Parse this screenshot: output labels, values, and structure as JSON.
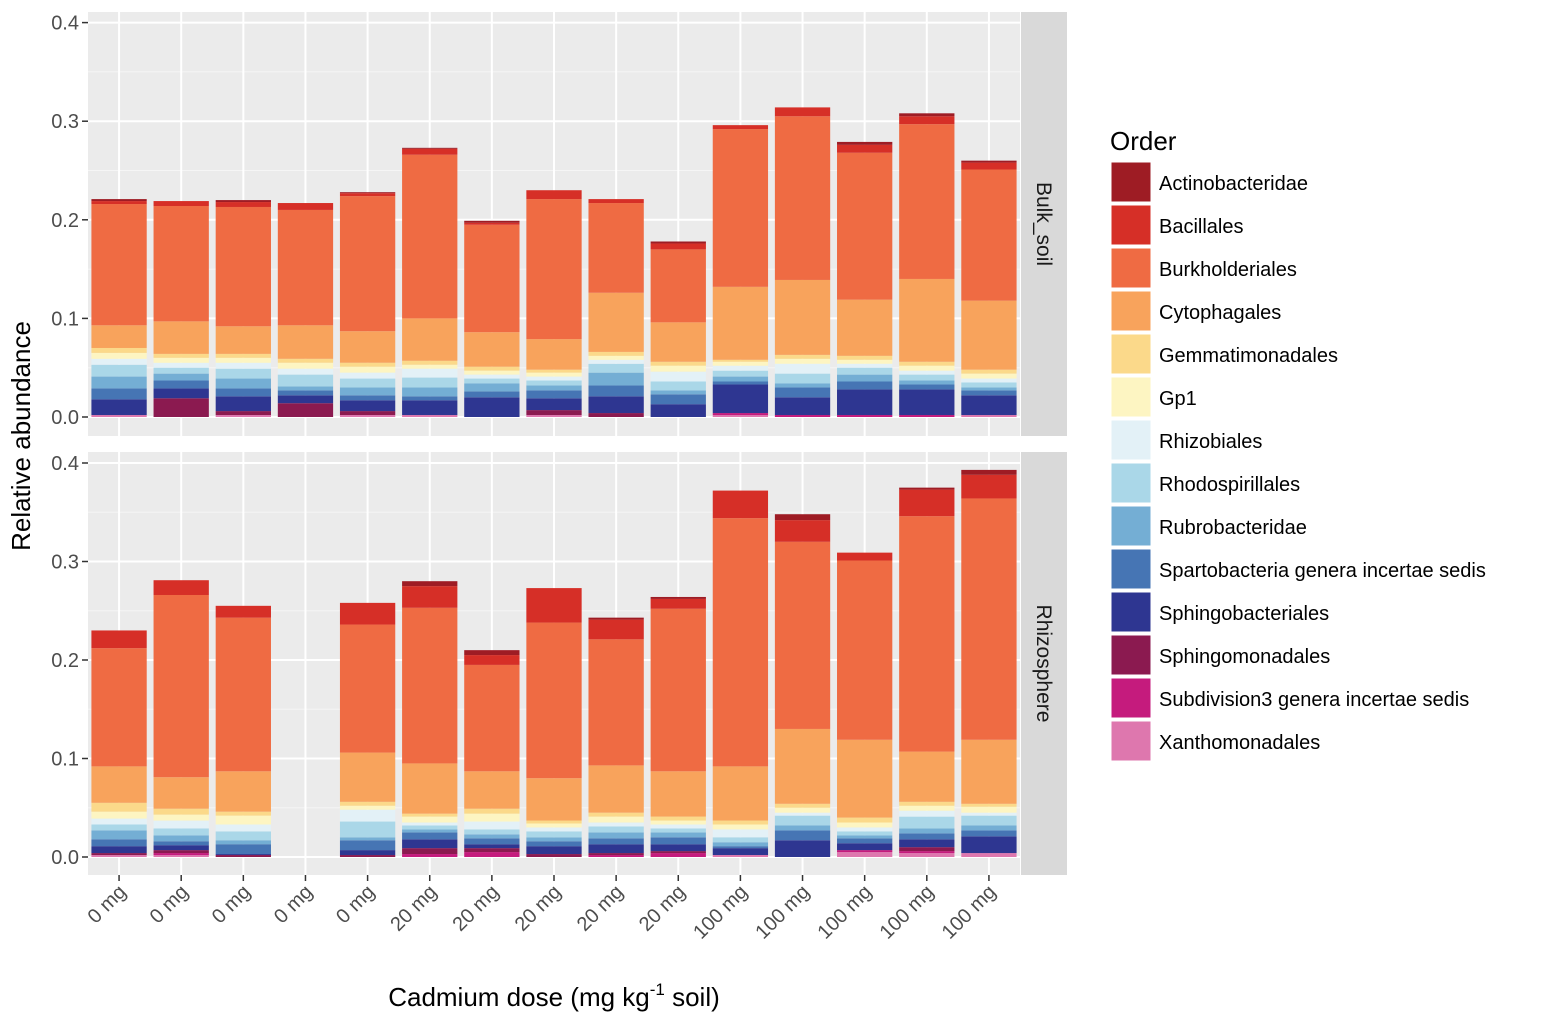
{
  "chart_data": {
    "type": "bar",
    "stacked": true,
    "xlabel_main": "Cadmium dose (mg kg",
    "xlabel_sup": "-1",
    "xlabel_tail": " soil)",
    "ylabel": "Relative abundance",
    "ylim": [
      0,
      0.4
    ],
    "yticks": [
      "0.0",
      "0.1",
      "0.2",
      "0.3",
      "0.4"
    ],
    "categories": [
      "0 mg",
      "0 mg",
      "0 mg",
      "0 mg",
      "0 mg",
      "20 mg",
      "20 mg",
      "20 mg",
      "20 mg",
      "20 mg",
      "100 mg",
      "100 mg",
      "100 mg",
      "100 mg",
      "100 mg"
    ],
    "legend": {
      "title": "Order",
      "entries": [
        {
          "name": "Actinobacteridae",
          "color": "#9e1c24"
        },
        {
          "name": "Bacillales",
          "color": "#d62f27"
        },
        {
          "name": "Burkholderiales",
          "color": "#ef6b43"
        },
        {
          "name": "Cytophagales",
          "color": "#f8a35c"
        },
        {
          "name": "Gemmatimonadales",
          "color": "#fbd98a"
        },
        {
          "name": "Gp1",
          "color": "#fdf5c2"
        },
        {
          "name": "Rhizobiales",
          "color": "#e3f1f7"
        },
        {
          "name": "Rhodospirillales",
          "color": "#aad7e8"
        },
        {
          "name": "Rubrobacteridae",
          "color": "#74aed4"
        },
        {
          "name": "Spartobacteria genera incertae sedis",
          "color": "#4675b4"
        },
        {
          "name": "Sphingobacteriales",
          "color": "#2e3691"
        },
        {
          "name": "Sphingomonadales",
          "color": "#8b1a50"
        },
        {
          "name": "Subdivision3 genera incertae sedis",
          "color": "#c51b7d"
        },
        {
          "name": "Xanthomonadales",
          "color": "#de77ae"
        }
      ]
    },
    "panels": [
      {
        "strip": "Bulk_soil",
        "bars": [
          [
            0.002,
            0.003,
            0.123,
            0.023,
            0.005,
            0.006,
            0.006,
            0.012,
            0.012,
            0.011,
            0.016,
            0.0,
            0.0,
            0.002
          ],
          [
            0.0,
            0.005,
            0.117,
            0.033,
            0.004,
            0.005,
            0.005,
            0.006,
            0.007,
            0.008,
            0.01,
            0.019,
            0.0,
            0.0
          ],
          [
            0.002,
            0.005,
            0.121,
            0.028,
            0.004,
            0.005,
            0.006,
            0.01,
            0.01,
            0.008,
            0.015,
            0.004,
            0.0,
            0.002
          ],
          [
            0.0,
            0.007,
            0.117,
            0.034,
            0.004,
            0.006,
            0.006,
            0.012,
            0.004,
            0.005,
            0.008,
            0.014,
            0.0,
            0.0
          ],
          [
            0.001,
            0.003,
            0.137,
            0.032,
            0.004,
            0.006,
            0.006,
            0.009,
            0.008,
            0.005,
            0.011,
            0.004,
            0.0,
            0.002
          ],
          [
            0.001,
            0.006,
            0.166,
            0.043,
            0.004,
            0.004,
            0.009,
            0.01,
            0.009,
            0.004,
            0.015,
            0.0,
            0.0,
            0.002
          ],
          [
            0.002,
            0.002,
            0.109,
            0.035,
            0.004,
            0.004,
            0.004,
            0.005,
            0.008,
            0.006,
            0.02,
            0.0,
            0.0,
            0.0
          ],
          [
            0.0,
            0.009,
            0.142,
            0.031,
            0.003,
            0.004,
            0.004,
            0.005,
            0.005,
            0.008,
            0.012,
            0.005,
            0.0,
            0.002
          ],
          [
            0.0,
            0.004,
            0.091,
            0.06,
            0.004,
            0.004,
            0.004,
            0.009,
            0.013,
            0.011,
            0.017,
            0.004,
            0.0,
            0.0
          ],
          [
            0.002,
            0.006,
            0.074,
            0.04,
            0.004,
            0.006,
            0.01,
            0.009,
            0.004,
            0.01,
            0.013,
            0.0,
            0.0,
            0.0
          ],
          [
            0.0,
            0.004,
            0.16,
            0.074,
            0.002,
            0.004,
            0.005,
            0.006,
            0.005,
            0.003,
            0.029,
            0.0,
            0.002,
            0.002
          ],
          [
            0.0,
            0.009,
            0.166,
            0.076,
            0.004,
            0.005,
            0.01,
            0.01,
            0.004,
            0.01,
            0.018,
            0.0,
            0.002,
            0.0
          ],
          [
            0.003,
            0.008,
            0.149,
            0.057,
            0.004,
            0.004,
            0.004,
            0.007,
            0.007,
            0.008,
            0.026,
            0.0,
            0.002,
            0.0
          ],
          [
            0.003,
            0.008,
            0.157,
            0.084,
            0.004,
            0.005,
            0.004,
            0.006,
            0.004,
            0.005,
            0.026,
            0.0,
            0.002,
            0.0
          ],
          [
            0.002,
            0.007,
            0.133,
            0.07,
            0.004,
            0.005,
            0.004,
            0.005,
            0.003,
            0.005,
            0.02,
            0.0,
            0.0,
            0.002
          ]
        ]
      },
      {
        "strip": "Rhizosphere",
        "bars": [
          [
            0.0,
            0.018,
            0.12,
            0.037,
            0.009,
            0.007,
            0.006,
            0.006,
            0.009,
            0.007,
            0.007,
            0.002,
            0.0,
            0.002
          ],
          [
            0.0,
            0.015,
            0.185,
            0.032,
            0.006,
            0.006,
            0.008,
            0.007,
            0.006,
            0.004,
            0.005,
            0.003,
            0.002,
            0.002
          ],
          [
            0.0,
            0.012,
            0.156,
            0.041,
            0.004,
            0.009,
            0.007,
            0.009,
            0.004,
            0.01,
            0.001,
            0.002,
            0.0,
            0.0
          ],
          [
            0.0,
            0.0,
            0.0,
            0.0,
            0.0,
            0.0,
            0.0,
            0.0,
            0.0,
            0.0,
            0.0,
            0.0,
            0.0,
            0.0
          ],
          [
            0.0,
            0.022,
            0.13,
            0.05,
            0.004,
            0.004,
            0.012,
            0.016,
            0.003,
            0.01,
            0.005,
            0.002,
            0.0,
            0.0
          ],
          [
            0.005,
            0.022,
            0.158,
            0.051,
            0.003,
            0.006,
            0.003,
            0.004,
            0.003,
            0.007,
            0.009,
            0.006,
            0.003,
            0.0
          ],
          [
            0.005,
            0.01,
            0.108,
            0.038,
            0.005,
            0.008,
            0.008,
            0.005,
            0.004,
            0.006,
            0.004,
            0.004,
            0.005,
            0.0
          ],
          [
            0.0,
            0.035,
            0.158,
            0.043,
            0.003,
            0.004,
            0.004,
            0.006,
            0.004,
            0.005,
            0.008,
            0.003,
            0.0,
            0.0
          ],
          [
            0.002,
            0.02,
            0.128,
            0.048,
            0.004,
            0.006,
            0.004,
            0.006,
            0.006,
            0.006,
            0.009,
            0.002,
            0.002,
            0.0
          ],
          [
            0.002,
            0.01,
            0.165,
            0.046,
            0.004,
            0.004,
            0.004,
            0.004,
            0.005,
            0.007,
            0.007,
            0.002,
            0.004,
            0.0
          ],
          [
            0.0,
            0.028,
            0.252,
            0.055,
            0.004,
            0.005,
            0.008,
            0.005,
            0.004,
            0.002,
            0.007,
            0.0,
            0.0,
            0.002
          ],
          [
            0.006,
            0.022,
            0.19,
            0.076,
            0.004,
            0.005,
            0.003,
            0.01,
            0.005,
            0.01,
            0.017,
            0.0,
            0.0,
            0.0
          ],
          [
            0.0,
            0.008,
            0.182,
            0.079,
            0.005,
            0.005,
            0.004,
            0.004,
            0.003,
            0.005,
            0.007,
            0.0,
            0.002,
            0.005
          ],
          [
            0.002,
            0.027,
            0.239,
            0.051,
            0.004,
            0.005,
            0.006,
            0.012,
            0.005,
            0.006,
            0.008,
            0.004,
            0.002,
            0.004
          ],
          [
            0.005,
            0.024,
            0.245,
            0.065,
            0.003,
            0.006,
            0.003,
            0.01,
            0.005,
            0.006,
            0.017,
            0.0,
            0.0,
            0.004
          ]
        ]
      }
    ]
  }
}
